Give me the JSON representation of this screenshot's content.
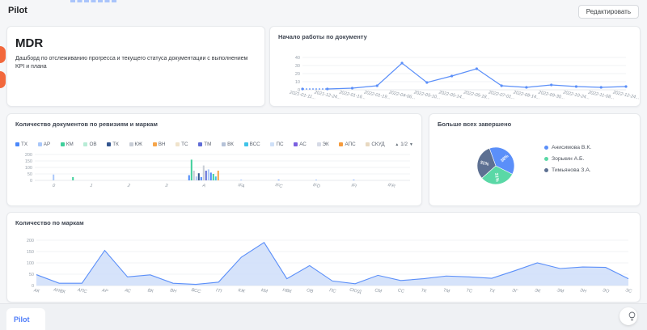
{
  "header": {
    "app_title": "Pilot",
    "edit_button": "Редактировать"
  },
  "mdr_card": {
    "title": "MDR",
    "description": "Дашборд по отслеживанию прогресса и текущего статуса документации с выполнением KPI и плана"
  },
  "footer": {
    "tab_label": "Pilot",
    "action_icon": "lightbulb-icon"
  },
  "colors": {
    "accent_blue": "#5b8ff9",
    "area_fill": "#cfdef9",
    "handle_orange": "#f2683c"
  },
  "chart_data": [
    {
      "id": "start_work",
      "type": "line",
      "title": "Начало работы по документу",
      "x": [
        "2021-01-11...",
        "2021-12-24...",
        "2022-01-16...",
        "2022-01-19...",
        "2022-04-06...",
        "2022-05-10...",
        "2022-05-14...",
        "2022-05-18...",
        "2022-07-01...",
        "2022-08-14...",
        "2022-09-30...",
        "2022-10-24...",
        "2022-11-08...",
        "2022-12-24..."
      ],
      "values": [
        1,
        1,
        2,
        5,
        33,
        9,
        17,
        26,
        5,
        3,
        6,
        4,
        3,
        4
      ],
      "ylim": [
        0,
        40
      ],
      "yticks": [
        0,
        10,
        20,
        30,
        40
      ],
      "line_color": "#5b8ff9",
      "grid": true,
      "first_segment_dashed": true
    },
    {
      "id": "revisions",
      "type": "bar",
      "title": "Количество документов по ревизиям и маркам",
      "legend": [
        {
          "label": "ТХ",
          "color": "#4b88fa"
        },
        {
          "label": "АР",
          "color": "#a9c7f9"
        },
        {
          "label": "КМ",
          "color": "#3fcf9b"
        },
        {
          "label": "ОВ",
          "color": "#b8ecd6"
        },
        {
          "label": "ТК",
          "color": "#33558e"
        },
        {
          "label": "КЖ",
          "color": "#c8cdd6"
        },
        {
          "label": "ВН",
          "color": "#f6a54a"
        },
        {
          "label": "ТС",
          "color": "#f0e3cb"
        },
        {
          "label": "ТМ",
          "color": "#5f6cd6"
        },
        {
          "label": "ВК",
          "color": "#b5c2d8"
        },
        {
          "label": "ВСС",
          "color": "#3fc3e8"
        },
        {
          "label": "ПС",
          "color": "#cfe0f8"
        },
        {
          "label": "АС",
          "color": "#7a5fe0"
        },
        {
          "label": "ЭК",
          "color": "#d6dae6"
        },
        {
          "label": "АПС",
          "color": "#f69b3c"
        },
        {
          "label": "СКУД",
          "color": "#e8d8c0"
        }
      ],
      "legend_pager": "1/2",
      "categories": [
        "0",
        "1",
        "2",
        "3",
        "A",
        "IFA",
        "IFC",
        "IFD",
        "IFI",
        "IFR"
      ],
      "groups": [
        {
          "category": "0",
          "dx": 0,
          "bars": [
            {
              "color": "#a9c7f9",
              "value": 45
            }
          ]
        },
        {
          "category": "0",
          "dx": 24,
          "bars": [
            {
              "color": "#3fcf9b",
              "value": 25
            }
          ]
        },
        {
          "category": "A",
          "dx": 0,
          "bars": [
            {
              "color": "#4b88fa",
              "value": 40
            },
            {
              "color": "#3fcf9b",
              "value": 160
            },
            {
              "color": "#c8cdd6",
              "value": 75
            },
            {
              "color": "#a9c7f9",
              "value": 30
            },
            {
              "color": "#33558e",
              "value": 55
            },
            {
              "color": "#4b88fa",
              "value": 25
            },
            {
              "color": "#c8cdd6",
              "value": 115
            },
            {
              "color": "#5f6cd6",
              "value": 75
            },
            {
              "color": "#a9c7f9",
              "value": 85
            },
            {
              "color": "#4b88fa",
              "value": 60
            },
            {
              "color": "#3fcf9b",
              "value": 50
            },
            {
              "color": "#3fc3e8",
              "value": 30
            },
            {
              "color": "#f6a54a",
              "value": 75
            }
          ]
        },
        {
          "category": "IFA",
          "dx": 0,
          "bars": [
            {
              "color": "#4b88fa",
              "value": 3
            }
          ]
        },
        {
          "category": "IFC",
          "dx": 0,
          "bars": [
            {
              "color": "#4b88fa",
              "value": 5
            }
          ]
        },
        {
          "category": "IFD",
          "dx": 0,
          "bars": [
            {
              "color": "#4b88fa",
              "value": 3
            }
          ]
        },
        {
          "category": "IFI",
          "dx": 0,
          "bars": [
            {
              "color": "#4b88fa",
              "value": 4
            }
          ]
        }
      ],
      "ylim": [
        0,
        200
      ],
      "yticks": [
        0,
        50,
        100,
        150,
        200
      ],
      "legend_position": "top"
    },
    {
      "id": "completed",
      "type": "pie",
      "title": "Больше всех завершено",
      "slices": [
        {
          "label": "Анисимова В.К.",
          "value": 38,
          "color": "#5b8ff9"
        },
        {
          "label": "Зорькин А.Б.",
          "value": 31,
          "color": "#5ad8a6"
        },
        {
          "label": "Тимьянова З.А.",
          "value": 31,
          "color": "#5d7092"
        }
      ],
      "label_format": "percent",
      "start_angle_deg": -20,
      "legend_position": "right"
    },
    {
      "id": "by_marks",
      "type": "area",
      "title": "Количество по маркам",
      "categories": [
        "АК",
        "АНВК",
        "АПС",
        "АР",
        "АС",
        "ВК",
        "ВН",
        "ВСС",
        "ГП",
        "КЖ",
        "КМ",
        "НВК",
        "ОВ",
        "ПС",
        "СКУД",
        "СМ",
        "СС",
        "ТК",
        "ТМ",
        "ТС",
        "ТХ",
        "ЭГ",
        "ЭК",
        "ЭМ",
        "ЭН",
        "ЭО",
        "ЭС"
      ],
      "values": [
        48,
        10,
        10,
        155,
        38,
        47,
        10,
        5,
        15,
        125,
        190,
        30,
        88,
        20,
        8,
        45,
        22,
        30,
        42,
        38,
        32,
        65,
        100,
        75,
        82,
        80,
        30
      ],
      "ylim": [
        0,
        200
      ],
      "yticks": [
        0,
        50,
        100,
        150,
        200
      ],
      "line_color": "#5b8ff9",
      "fill_color": "#cfdef9",
      "grid": true
    }
  ]
}
